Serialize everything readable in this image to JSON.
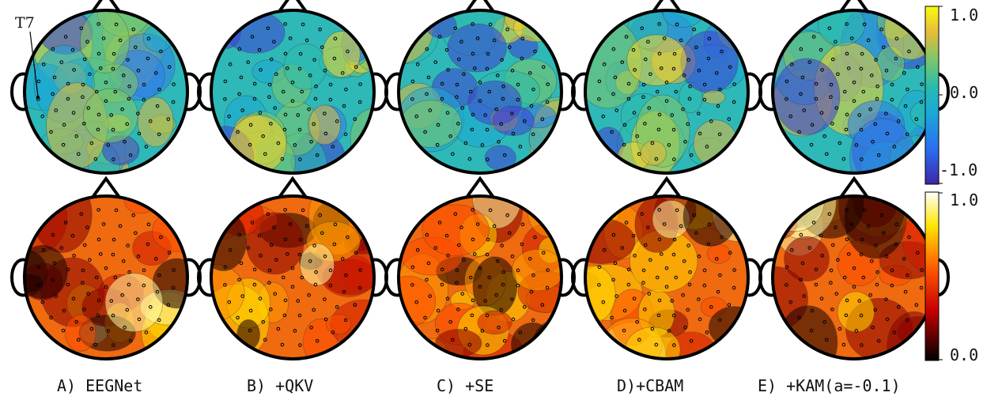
{
  "figure": {
    "panel_labels": [
      "A) EEGNet",
      "B) +QKV",
      "C) +SE",
      "D)+CBAM",
      "E) +KAM(a=-0.1)"
    ],
    "annotation": "T7",
    "rows": [
      {
        "colormap": "parula",
        "colorbar_max": "1.0",
        "colorbar_mid": "0.0",
        "colorbar_min": "-1.0"
      },
      {
        "colormap": "hot",
        "colorbar_max": "1.0",
        "colorbar_min": "0.0"
      }
    ]
  }
}
